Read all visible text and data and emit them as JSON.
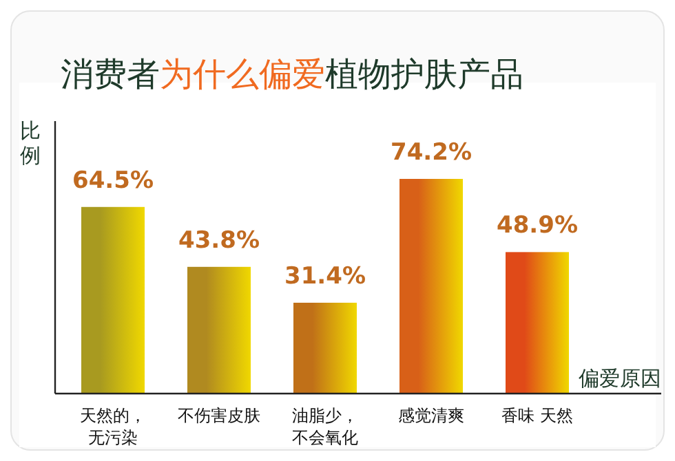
{
  "chart_data": {
    "type": "bar",
    "title": "消费者**为什么偏爱**植物护肤产品",
    "ylabel": "比例",
    "xlabel": "偏爱原因",
    "categories": [
      "天然的，无污染",
      "不伤害皮肤",
      "油脂少，不会氧化",
      "感觉清爽",
      "香味 天然"
    ],
    "values": [
      64.5,
      43.8,
      31.4,
      74.2,
      48.9
    ],
    "value_labels": [
      "64.5%",
      "43.8%",
      "31.4%",
      "74.2%",
      "48.9%"
    ],
    "colors": [
      "#a89a20",
      "#b08a20",
      "#c07018",
      "#d86018",
      "#e04a18"
    ]
  }
}
